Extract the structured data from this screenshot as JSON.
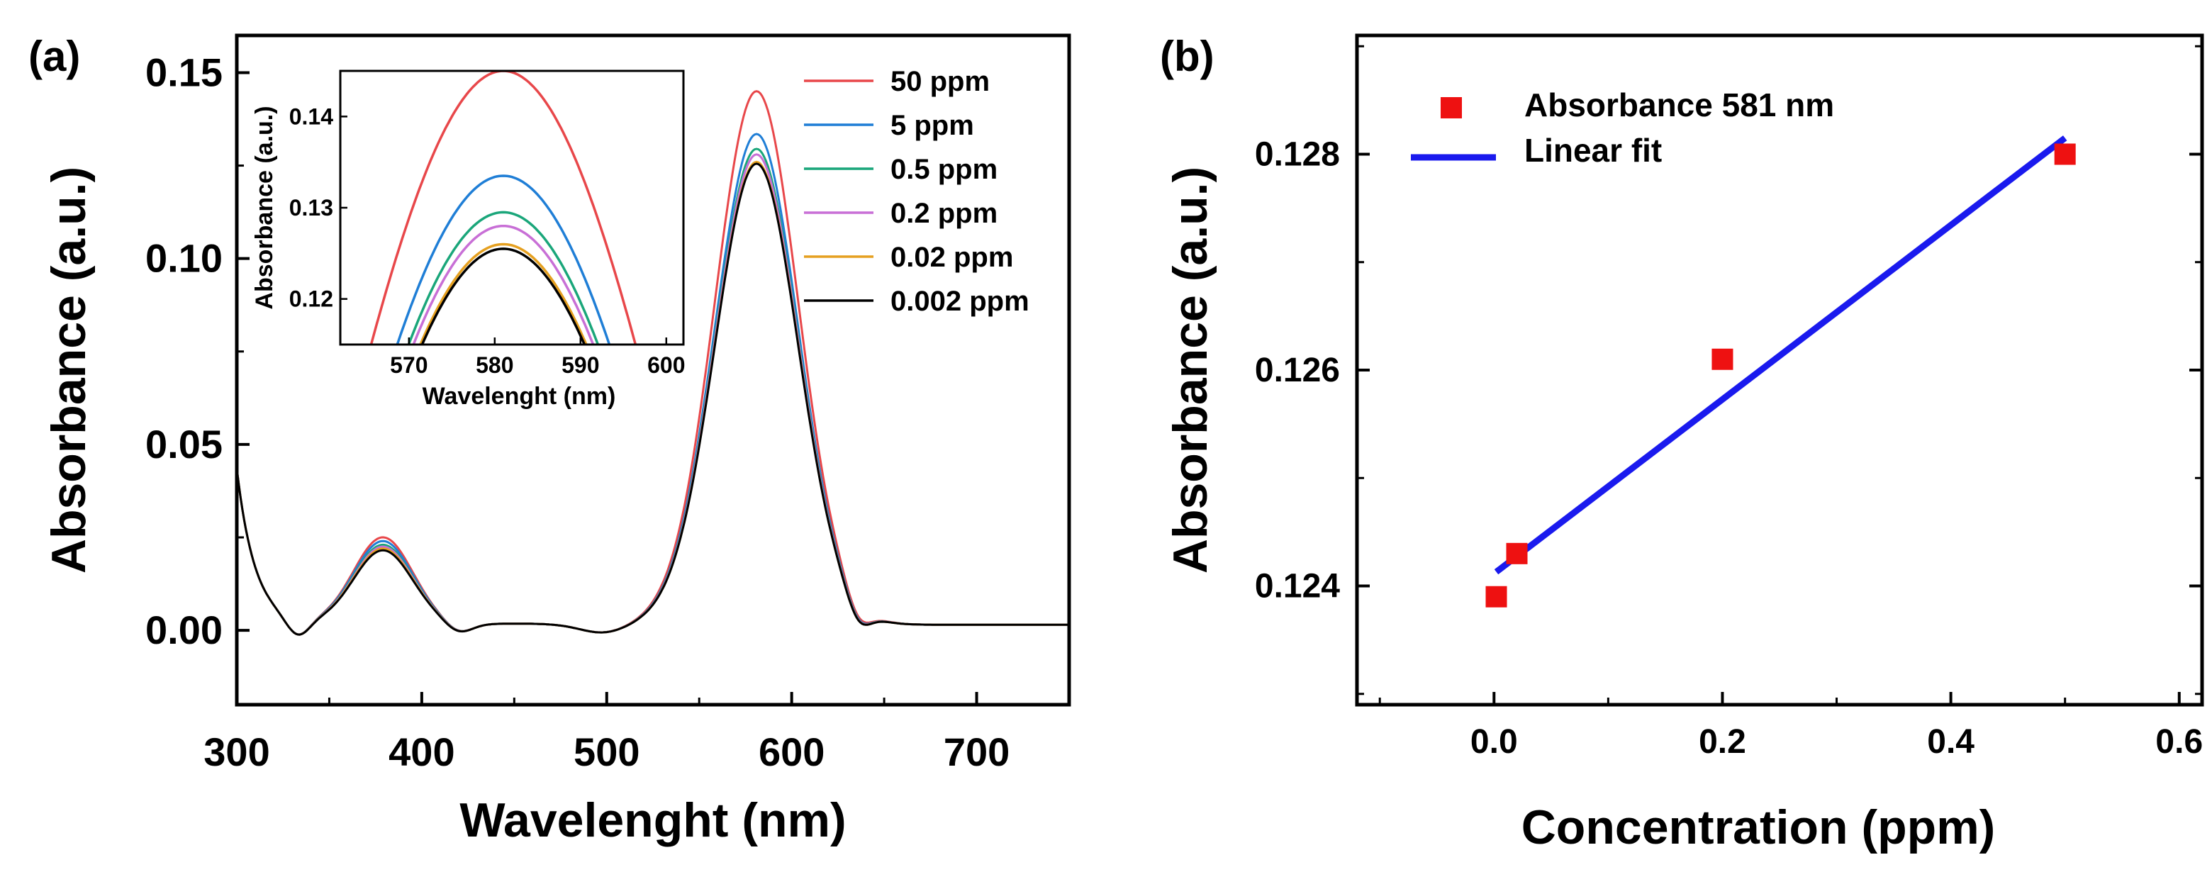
{
  "chart_data": [
    {
      "panel_label": "(a)",
      "type": "line",
      "xlabel": "Wavelenght (nm)",
      "ylabel": "Absorbance (a.u.)",
      "xlim": [
        300,
        750
      ],
      "ylim": [
        -0.02,
        0.16
      ],
      "x_ticks": [
        300,
        400,
        500,
        600,
        700
      ],
      "y_ticks": [
        0.0,
        0.05,
        0.1,
        0.15
      ],
      "x_tick_labels": [
        "300",
        "400",
        "500",
        "600",
        "700"
      ],
      "y_tick_labels": [
        "0.00",
        "0.05",
        "0.10",
        "0.15"
      ],
      "legend_position": "top-right",
      "series": [
        {
          "name": "50 ppm",
          "color": "#e8474a",
          "peak1": 0.0235,
          "peak2": 0.1435
        },
        {
          "name": "5 ppm",
          "color": "#1f7ed6",
          "peak1": 0.0225,
          "peak2": 0.132
        },
        {
          "name": "0.5 ppm",
          "color": "#1aa67a",
          "peak1": 0.0215,
          "peak2": 0.128
        },
        {
          "name": "0.2 ppm",
          "color": "#c86fd6",
          "peak1": 0.021,
          "peak2": 0.1265
        },
        {
          "name": "0.02 ppm",
          "color": "#e5a020",
          "peak1": 0.0205,
          "peak2": 0.1245
        },
        {
          "name": "0.002 ppm",
          "color": "#000000",
          "peak1": 0.02,
          "peak2": 0.124
        }
      ],
      "inset": {
        "xlabel": "Wavelenght (nm)",
        "ylabel": "Absorbance (a.u.)",
        "xlim": [
          562,
          602
        ],
        "ylim": [
          0.115,
          0.145
        ],
        "x_ticks": [
          570,
          580,
          590,
          600
        ],
        "y_ticks": [
          0.12,
          0.13,
          0.14
        ],
        "x_tick_labels": [
          "570",
          "580",
          "590",
          "600"
        ],
        "y_tick_labels": [
          "0.12",
          "0.13",
          "0.14"
        ]
      }
    },
    {
      "panel_label": "(b)",
      "type": "scatter",
      "xlabel": "Concentration (ppm)",
      "ylabel": "Absorbance (a.u.)",
      "xlim": [
        -0.12,
        0.62
      ],
      "ylim": [
        0.1229,
        0.1291
      ],
      "x_ticks": [
        0.0,
        0.2,
        0.4,
        0.6
      ],
      "y_ticks": [
        0.124,
        0.126,
        0.128
      ],
      "x_tick_labels": [
        "0.0",
        "0.2",
        "0.4",
        "0.6"
      ],
      "y_tick_labels": [
        "0.124",
        "0.126",
        "0.128"
      ],
      "legend_position": "top-left",
      "series": [
        {
          "name": "Absorbance 581 nm",
          "color": "#ee1111",
          "marker": "square",
          "x": [
            0.002,
            0.02,
            0.2,
            0.5
          ],
          "y": [
            0.1239,
            0.1243,
            0.1261,
            0.128
          ]
        },
        {
          "name": "Linear fit",
          "color": "#1a1aee",
          "type": "line",
          "x": [
            0.002,
            0.5
          ],
          "y": [
            0.12413,
            0.12815
          ]
        }
      ]
    }
  ]
}
